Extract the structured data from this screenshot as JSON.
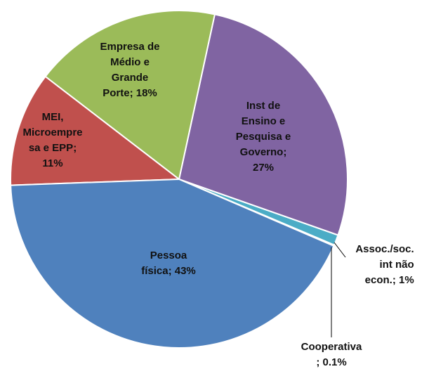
{
  "chart_data": {
    "type": "pie",
    "labels": [
      "Pessoa\nfísica; 43%",
      "MEI,\nMicroempre\nsa e EPP;\n11%",
      "Empresa de\nMédio e\nGrande\nPorte; 18%",
      "Inst de\nEnsino e\nPesquisa e\nGoverno;\n27%",
      "Assoc./soc.\nint não\necon.; 1%",
      "Cooperativa\n; 0.1%"
    ],
    "values": [
      43,
      11,
      18,
      27,
      1,
      0.1
    ],
    "colors": [
      "#4f81bd",
      "#c0504d",
      "#9bbb59",
      "#8064a2",
      "#4bacc6",
      "#f79646"
    ]
  }
}
